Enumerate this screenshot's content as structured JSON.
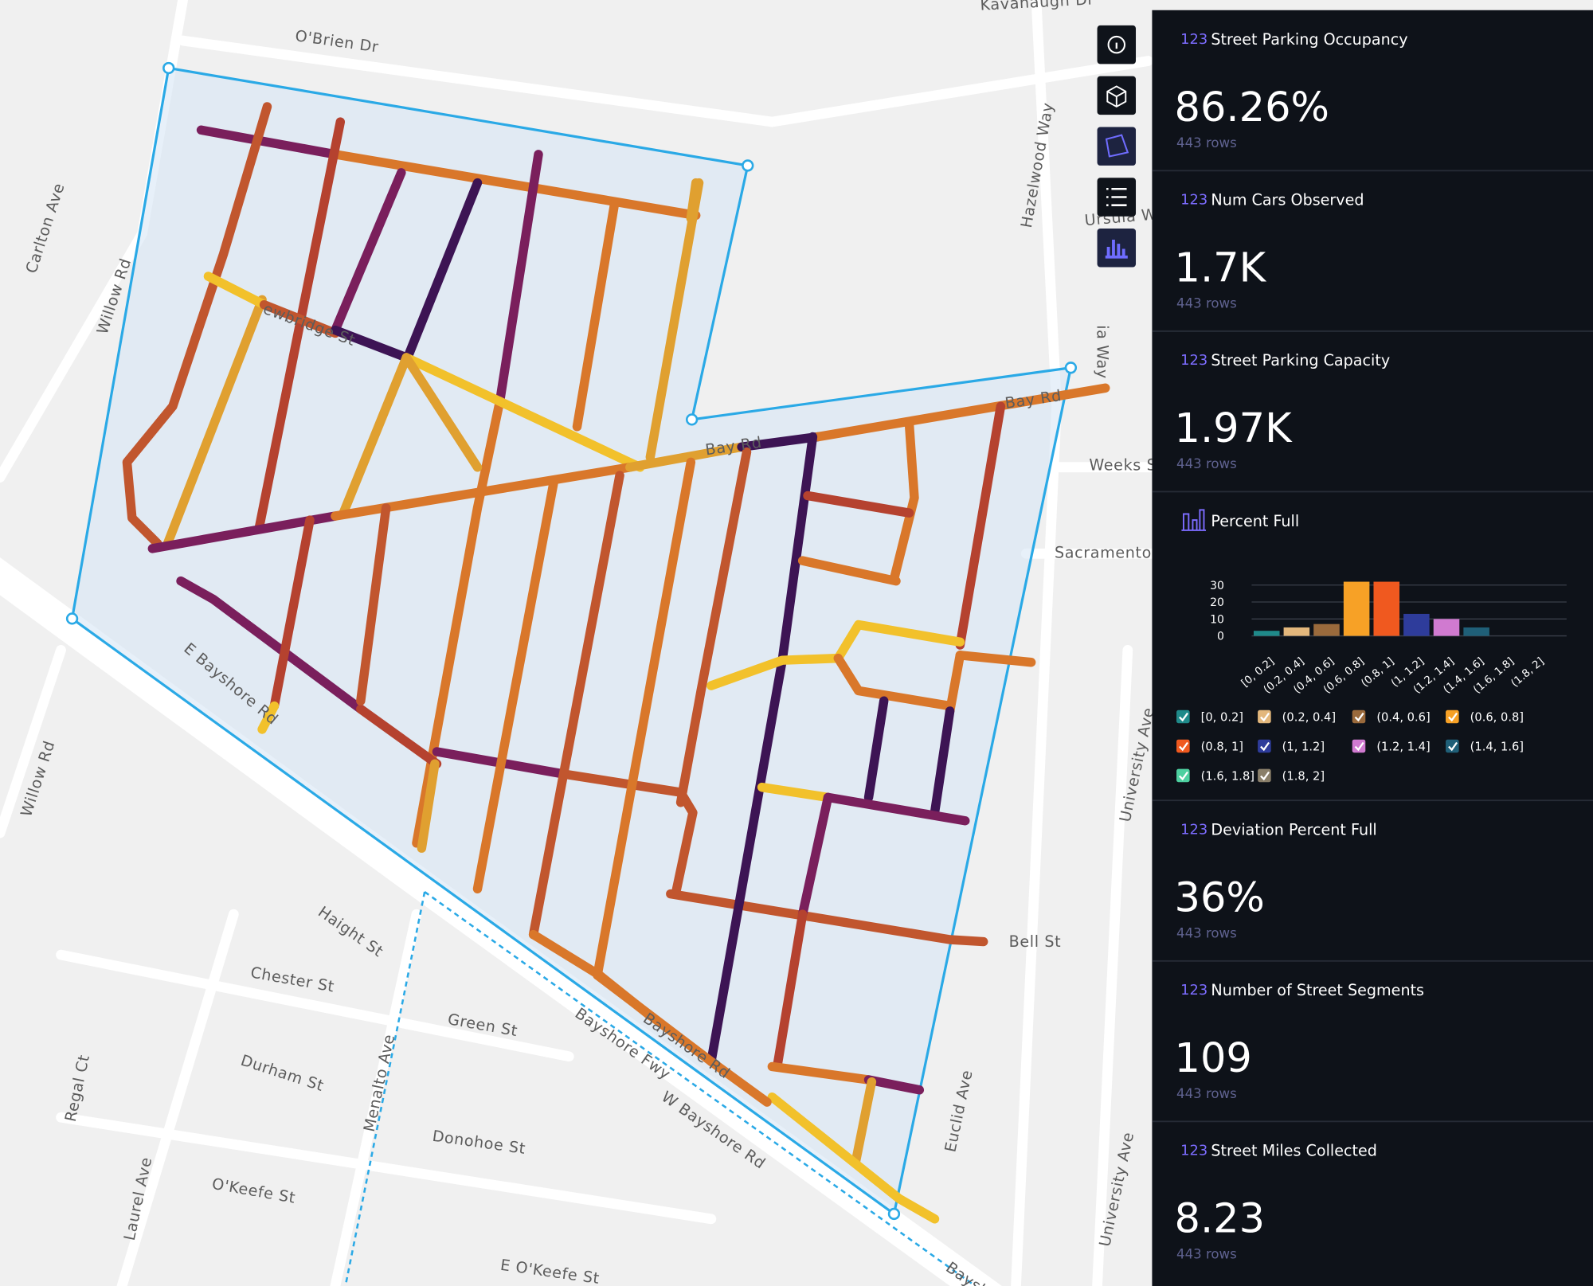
{
  "map": {
    "labels": [
      "O'Brien Dr",
      "Kavanaugh Dr",
      "Carlton Ave",
      "Willow Rd",
      "Willow Rd",
      "Hazelwood Way",
      "Ursula W",
      "ia Way",
      "Weeks S",
      "Sacramento S",
      "E Bayshore Rd",
      "Haight St",
      "Chester St",
      "Green St",
      "Durham St",
      "Menalto Ave",
      "Regal Ct",
      "Donohoe St",
      "O'Keefe St",
      "Laurel Ave",
      "E O'Keefe St",
      "Bayshore Fwy",
      "W Bayshore Rd",
      "Bayshore Rd",
      "Euclid Ave",
      "University Ave",
      "University Ave",
      "Bell St",
      "Bay Rd",
      "Bay Rd",
      "ewbridge St",
      "Baysh"
    ]
  },
  "sidebar": {
    "widgets": [
      {
        "icon": "123",
        "title": "Street Parking Occupancy",
        "value": "86.26%",
        "rows": "443 rows"
      },
      {
        "icon": "123",
        "title": "Num Cars Observed",
        "value": "1.7K",
        "rows": "443 rows"
      },
      {
        "icon": "123",
        "title": "Street Parking Capacity",
        "value": "1.97K",
        "rows": "443 rows"
      },
      {
        "title": "Percent Full",
        "chart": {
          "type": "bar",
          "categories": [
            "[0, 0.2]",
            "(0.2, 0.4]",
            "(0.4, 0.6]",
            "(0.6, 0.8]",
            "(0.8, 1]",
            "(1, 1.2]",
            "(1.2, 1.4]",
            "(1.4, 1.6]",
            "(1.6, 1.8]",
            "(1.8, 2]"
          ],
          "values": [
            3,
            5,
            7,
            32,
            32,
            13,
            10,
            5,
            0,
            0
          ],
          "colors": [
            "#1f8a8a",
            "#e3b77c",
            "#9a6a3c",
            "#f7a126",
            "#f0591f",
            "#2e3c9b",
            "#d07ad0",
            "#1f5f78",
            "#4dd0a0",
            "#8a7f6a"
          ],
          "ylim": [
            0,
            30
          ],
          "yticks": [
            0,
            10,
            20,
            30
          ],
          "grid": true
        }
      },
      {
        "icon": "123",
        "title": "Deviation Percent Full",
        "value": "36%",
        "rows": "443 rows"
      },
      {
        "icon": "123",
        "title": "Number of Street Segments",
        "value": "109",
        "rows": "443 rows"
      },
      {
        "icon": "123",
        "title": "Street Miles Collected",
        "value": "8.23",
        "rows": "443 rows"
      }
    ]
  }
}
